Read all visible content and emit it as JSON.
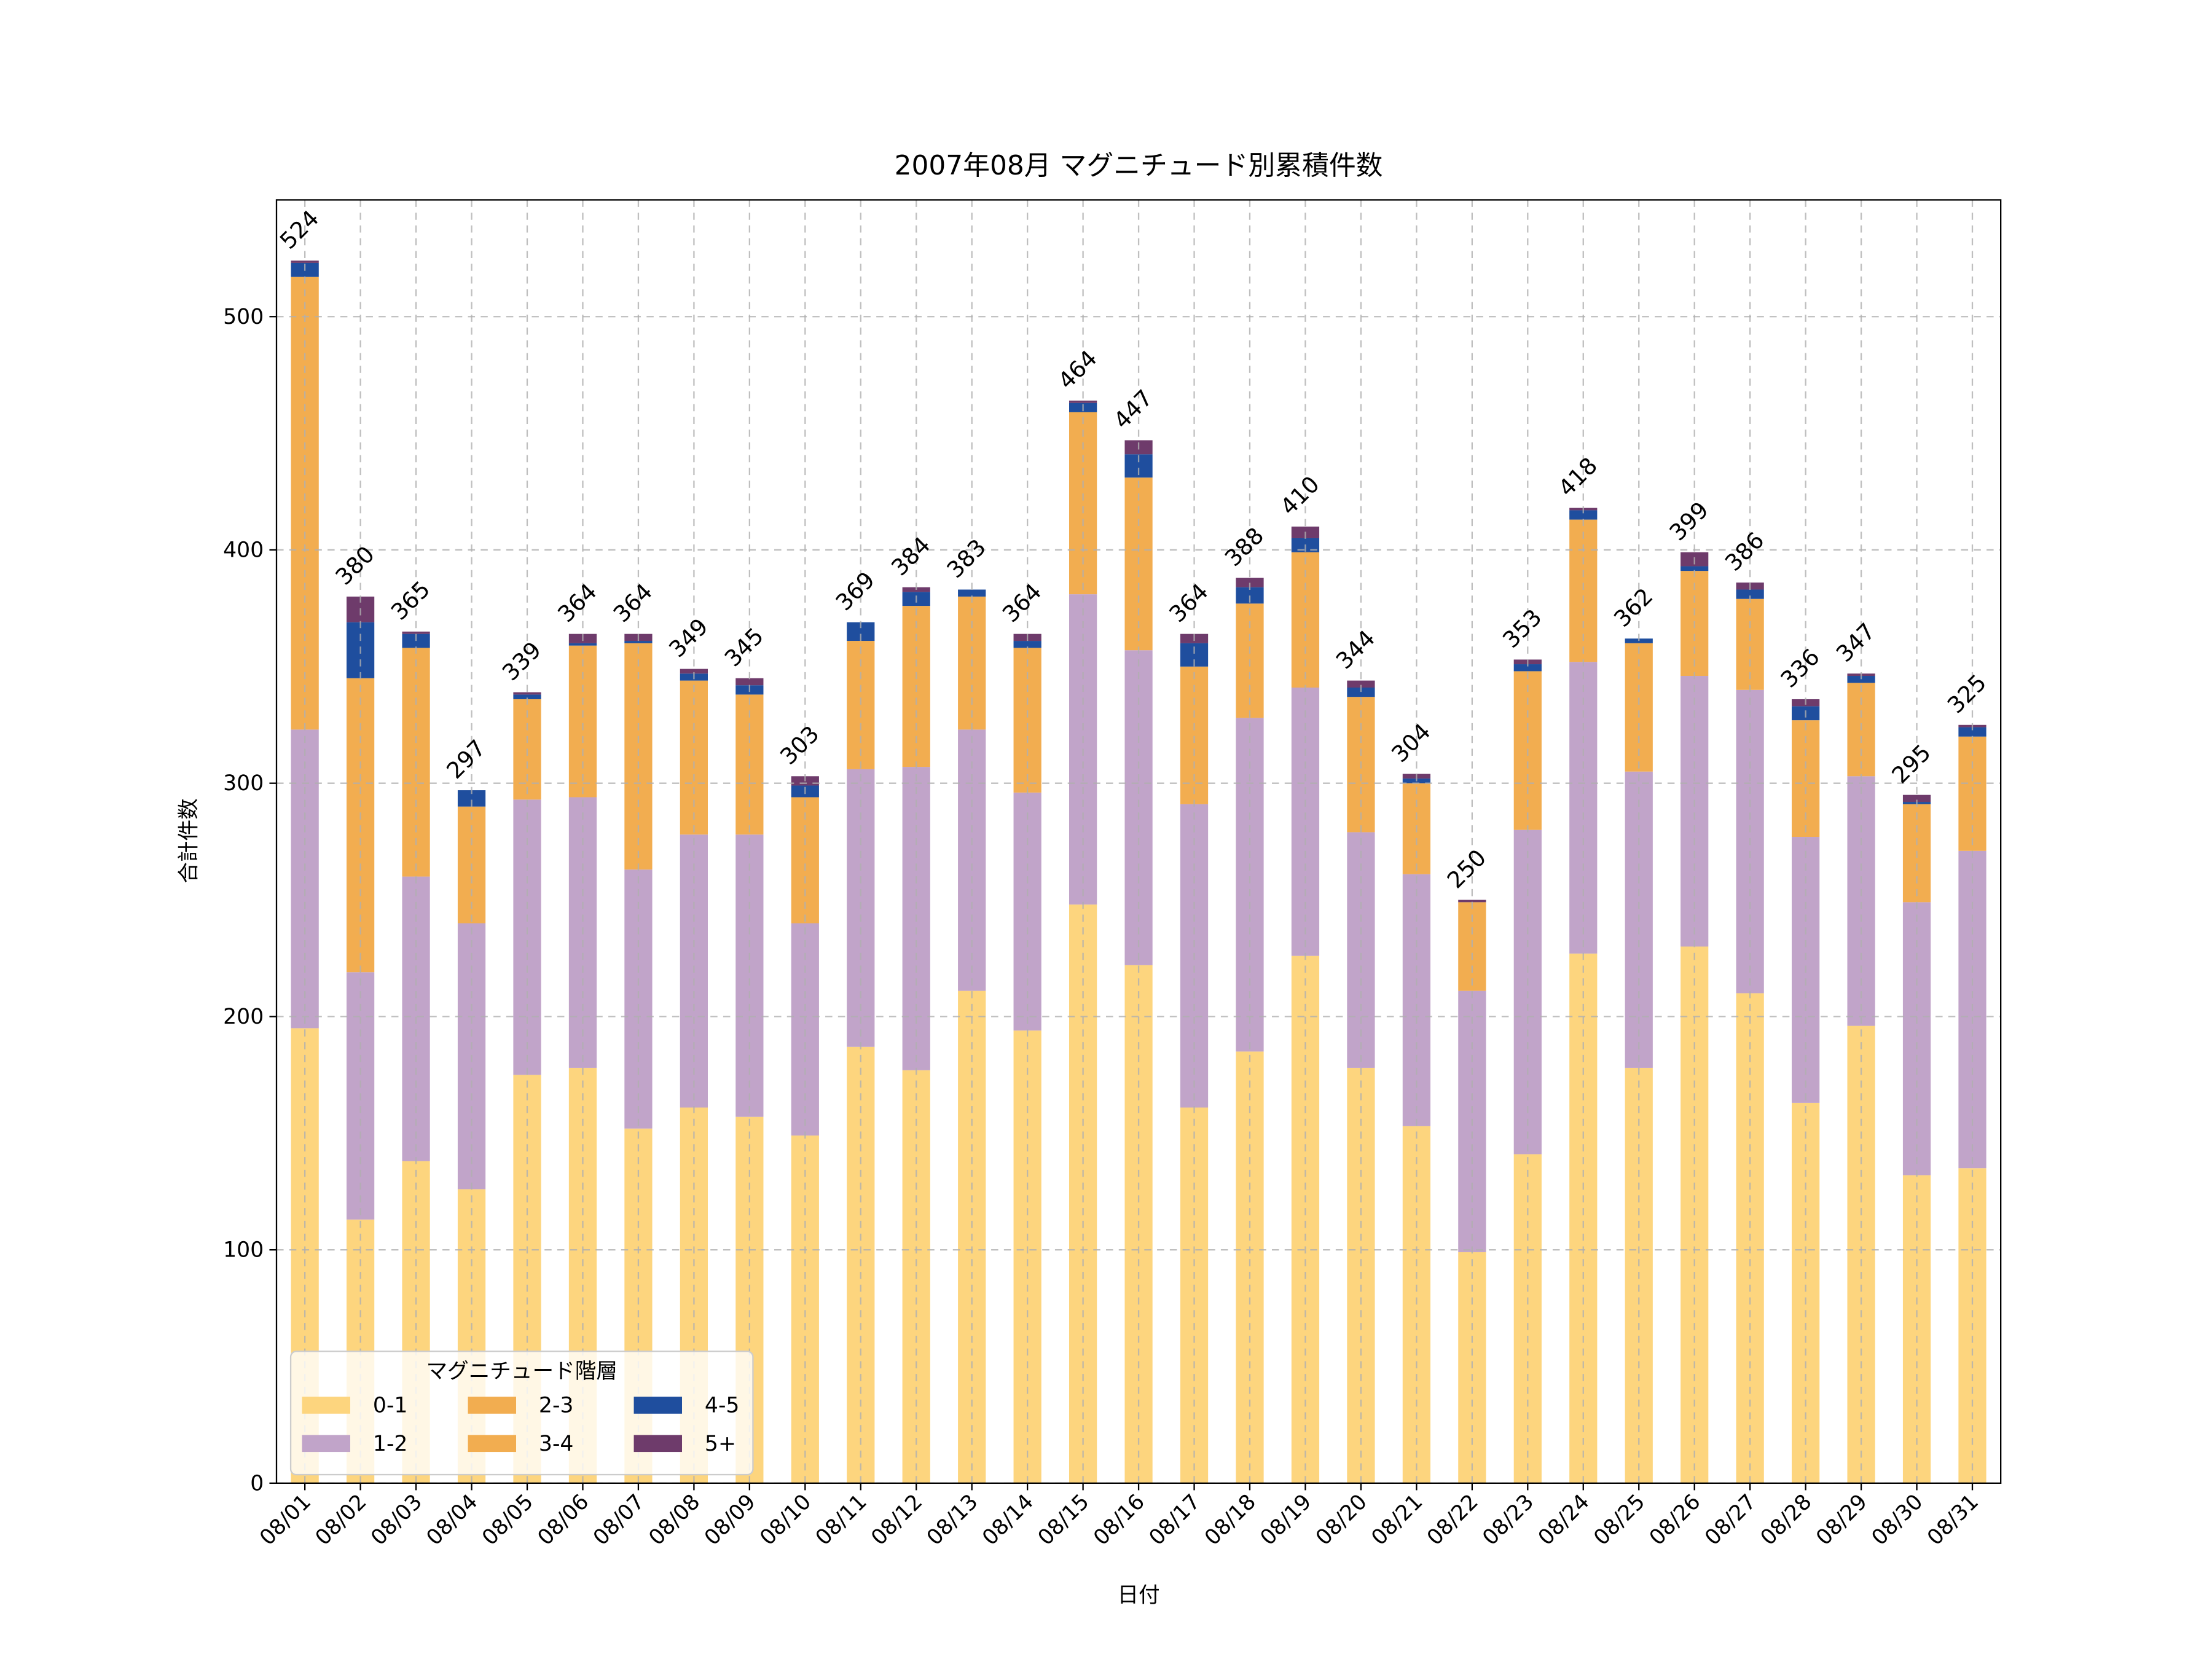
{
  "chart_data": {
    "type": "stacked_bar",
    "title": "2007年08月 マグニチュード別累積件数",
    "xlabel": "日付",
    "ylabel": "合計件数",
    "legend_title": "マグニチュード階層",
    "legend_position": "lower left",
    "grid": true,
    "ylim": [
      0,
      550
    ],
    "yticks": [
      0,
      100,
      200,
      300,
      400,
      500
    ],
    "categories": [
      "08/01",
      "08/02",
      "08/03",
      "08/04",
      "08/05",
      "08/06",
      "08/07",
      "08/08",
      "08/09",
      "08/10",
      "08/11",
      "08/12",
      "08/13",
      "08/14",
      "08/15",
      "08/16",
      "08/17",
      "08/18",
      "08/19",
      "08/20",
      "08/21",
      "08/22",
      "08/23",
      "08/24",
      "08/25",
      "08/26",
      "08/27",
      "08/28",
      "08/29",
      "08/30",
      "08/31"
    ],
    "series": [
      {
        "name": "0-1",
        "color": "#fdd57e",
        "values": [
          195,
          113,
          138,
          126,
          175,
          178,
          152,
          161,
          157,
          149,
          187,
          177,
          211,
          194,
          248,
          222,
          161,
          185,
          226,
          178,
          153,
          99,
          141,
          227,
          178,
          230,
          210,
          163,
          196,
          132,
          135
        ]
      },
      {
        "name": "1-2",
        "color": "#c1a4c9",
        "values": [
          128,
          106,
          122,
          114,
          118,
          116,
          111,
          117,
          121,
          91,
          119,
          130,
          112,
          102,
          133,
          135,
          130,
          143,
          115,
          101,
          108,
          112,
          139,
          125,
          127,
          116,
          130,
          114,
          107,
          117,
          136
        ]
      },
      {
        "name": "2-3",
        "color": "#f2ad50",
        "values": [
          194,
          126,
          98,
          50,
          43,
          65,
          97,
          66,
          60,
          54,
          55,
          69,
          57,
          62,
          78,
          74,
          59,
          49,
          58,
          58,
          39,
          38,
          68,
          61,
          55,
          45,
          39,
          50,
          40,
          42,
          49
        ]
      },
      {
        "name": "3-4",
        "color": "#f2ad50",
        "values": [
          0,
          0,
          0,
          0,
          0,
          0,
          0,
          0,
          0,
          0,
          0,
          0,
          0,
          0,
          0,
          0,
          0,
          0,
          0,
          0,
          0,
          0,
          0,
          0,
          0,
          0,
          0,
          0,
          0,
          0,
          0
        ]
      },
      {
        "name": "4-5",
        "color": "#1f4e9e",
        "values": [
          6,
          24,
          6,
          7,
          2,
          1,
          1,
          3,
          4,
          5,
          8,
          6,
          3,
          3,
          4,
          10,
          10,
          7,
          6,
          4,
          2,
          0,
          3,
          4,
          2,
          2,
          4,
          6,
          3,
          1,
          4
        ]
      },
      {
        "name": "5+",
        "color": "#6e3b6b",
        "values": [
          1,
          11,
          1,
          0,
          1,
          4,
          3,
          2,
          3,
          4,
          0,
          2,
          0,
          3,
          1,
          6,
          4,
          4,
          5,
          3,
          2,
          1,
          2,
          1,
          0,
          6,
          3,
          3,
          1,
          3,
          1
        ]
      }
    ],
    "totals": [
      524,
      380,
      365,
      297,
      339,
      364,
      364,
      349,
      345,
      303,
      369,
      384,
      383,
      364,
      464,
      447,
      364,
      388,
      410,
      344,
      304,
      250,
      353,
      418,
      362,
      399,
      386,
      336,
      347,
      295,
      325
    ]
  }
}
